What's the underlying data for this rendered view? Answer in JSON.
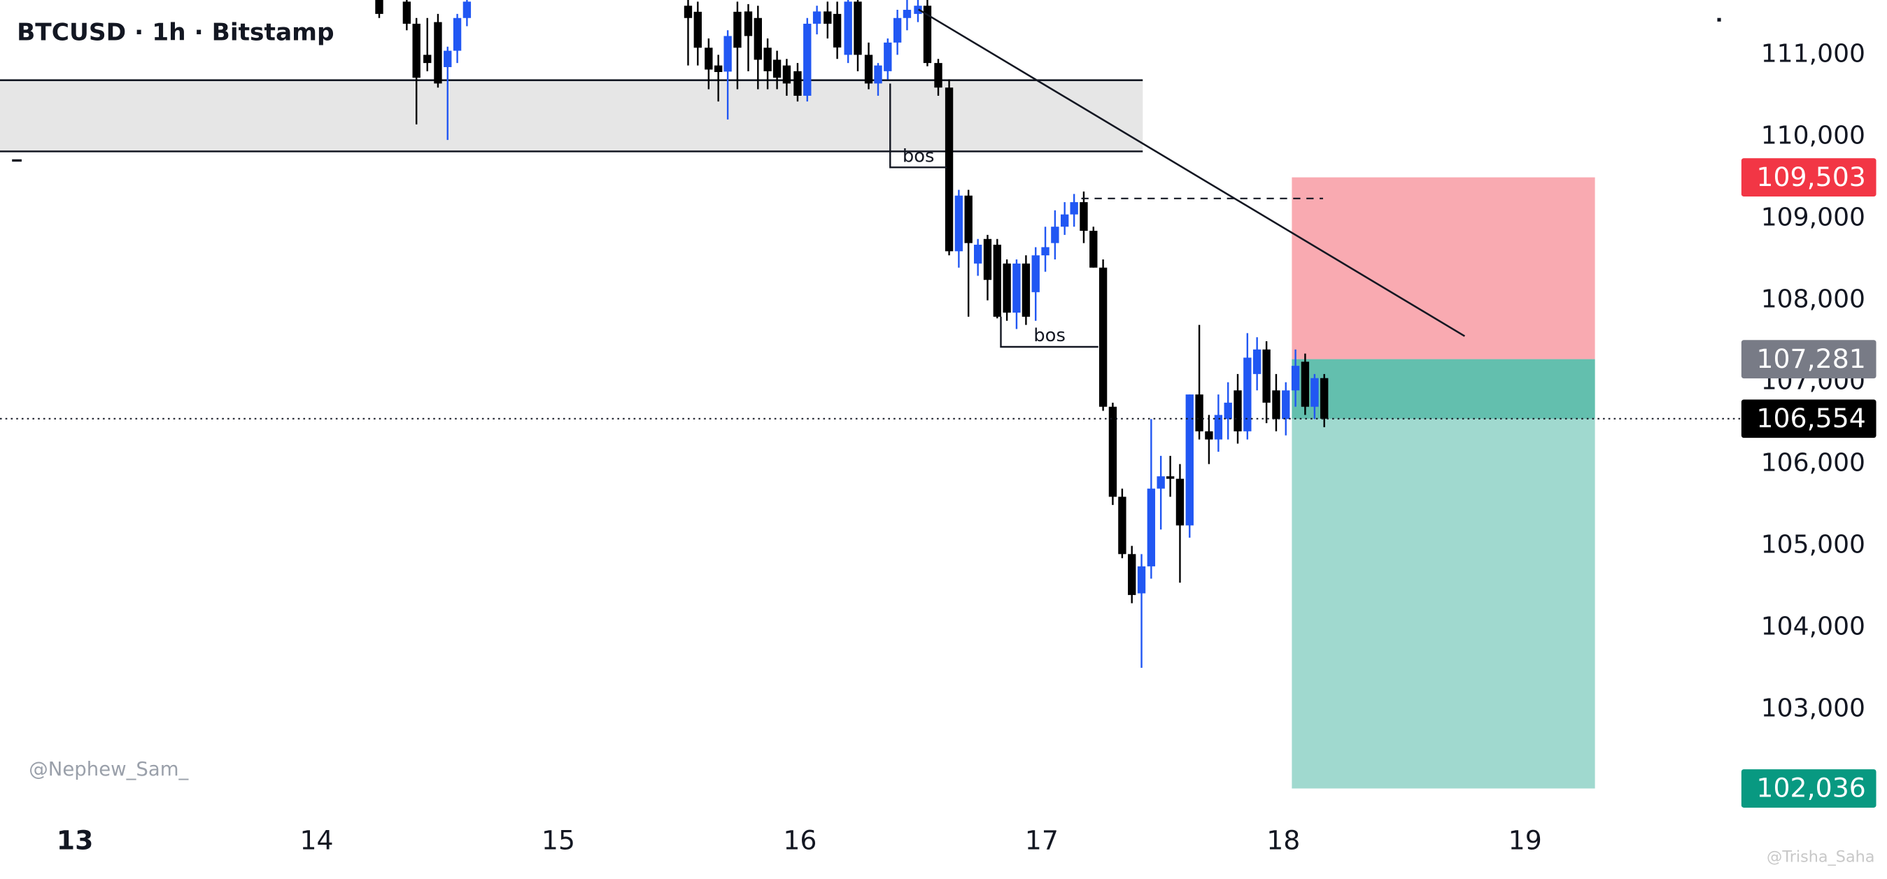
{
  "chart_data": {
    "type": "candlestick",
    "title": "BTCUSD · 1h · Bitstamp",
    "watermark": "@Nephew_Sam_",
    "corner_mark": "@Trisha_Saha",
    "up_color": "#2157f3",
    "down_color": "#000000",
    "xlim": [
      12.69,
      19.86
    ],
    "ylim": [
      101720,
      111670
    ],
    "xticks": [
      13,
      14,
      15,
      16,
      17,
      18,
      19
    ],
    "yticks": [
      {
        "value": 103000,
        "label": "103,000"
      },
      {
        "value": 104000,
        "label": "104,000"
      },
      {
        "value": 105000,
        "label": "105,000"
      },
      {
        "value": 106000,
        "label": "106,000"
      },
      {
        "value": 107000,
        "label": "107,000"
      },
      {
        "value": 108000,
        "label": "108,000"
      },
      {
        "value": 109000,
        "label": "109,000"
      },
      {
        "value": 110000,
        "label": "110,000"
      },
      {
        "value": 111000,
        "label": "111,000"
      }
    ],
    "x": [
      14.259,
      14.373,
      14.413,
      14.458,
      14.502,
      14.542,
      14.582,
      14.622,
      15.537,
      15.577,
      15.622,
      15.662,
      15.701,
      15.741,
      15.786,
      15.826,
      15.866,
      15.905,
      15.945,
      15.99,
      16.03,
      16.07,
      16.114,
      16.154,
      16.199,
      16.239,
      16.284,
      16.323,
      16.363,
      16.403,
      16.443,
      16.488,
      16.527,
      16.572,
      16.617,
      16.657,
      16.697,
      16.736,
      16.776,
      16.816,
      16.856,
      16.896,
      16.935,
      16.975,
      17.015,
      17.055,
      17.095,
      17.134,
      17.174,
      17.214,
      17.254,
      17.294,
      17.333,
      17.373,
      17.413,
      17.453,
      17.493,
      17.532,
      17.572,
      17.612,
      17.652,
      17.692,
      17.731,
      17.771,
      17.811,
      17.851,
      17.891,
      17.93,
      17.97,
      18.01,
      18.05,
      18.09,
      18.129,
      18.169
    ],
    "open": [
      111700,
      111650,
      111380,
      111000,
      111400,
      110850,
      111050,
      111450,
      111600,
      111526,
      111087,
      110870,
      110795,
      111526,
      111530,
      111450,
      111087,
      110940,
      110870,
      110800,
      110500,
      111380,
      111530,
      111500,
      111000,
      111650,
      111000,
      110650,
      110800,
      111150,
      111450,
      111500,
      111600,
      110900,
      110600,
      108600,
      109280,
      108450,
      108750,
      108680,
      108450,
      107850,
      108450,
      108100,
      108550,
      108700,
      108900,
      109050,
      109200,
      108850,
      108400,
      106700,
      105600,
      104900,
      104420,
      104750,
      105700,
      105850,
      105820,
      105250,
      106850,
      106400,
      106300,
      106550,
      106900,
      106400,
      107100,
      107400,
      106900,
      106550,
      106900,
      107250,
      106700,
      107050
    ],
    "high": [
      111750,
      111720,
      111450,
      111450,
      111500,
      111100,
      111500,
      111700,
      111700,
      111650,
      111200,
      111000,
      111300,
      111650,
      111620,
      111600,
      111200,
      111050,
      110950,
      110900,
      111450,
      111600,
      111650,
      111650,
      111700,
      111700,
      111150,
      110900,
      111200,
      111550,
      111700,
      111700,
      111700,
      110950,
      110700,
      109350,
      109350,
      108750,
      108800,
      108750,
      108500,
      108500,
      108550,
      108650,
      108900,
      109100,
      109200,
      109300,
      109330,
      108900,
      108500,
      106750,
      105700,
      105000,
      104900,
      106550,
      106100,
      106100,
      106000,
      106850,
      107700,
      106600,
      106850,
      107000,
      107100,
      107600,
      107550,
      107500,
      107100,
      107000,
      107400,
      107350,
      107100,
      107100
    ],
    "low": [
      111450,
      111300,
      110150,
      110800,
      110600,
      109960,
      110900,
      111350,
      110870,
      110870,
      110580,
      110430,
      110210,
      110580,
      110800,
      110580,
      110580,
      110580,
      110500,
      110430,
      110430,
      111250,
      111200,
      110950,
      110900,
      110800,
      110580,
      110500,
      110700,
      111000,
      111300,
      111400,
      110860,
      110500,
      108550,
      108400,
      107800,
      108300,
      108000,
      107780,
      107750,
      107650,
      107700,
      107750,
      108350,
      108500,
      108800,
      108900,
      108700,
      108400,
      106650,
      105500,
      104850,
      104300,
      103510,
      104600,
      105200,
      105600,
      104550,
      105100,
      106300,
      106000,
      106150,
      106300,
      106250,
      106300,
      106900,
      106500,
      106400,
      106350,
      106700,
      106600,
      106550,
      106450
    ],
    "close": [
      111500,
      111380,
      110720,
      110900,
      110650,
      111050,
      111450,
      111650,
      111450,
      111087,
      110820,
      110790,
      111230,
      111087,
      111230,
      110940,
      110800,
      110720,
      110650,
      110500,
      111380,
      111530,
      111380,
      111090,
      111650,
      111000,
      110650,
      110870,
      111150,
      111450,
      111550,
      111600,
      110900,
      110600,
      108600,
      109280,
      108700,
      108680,
      108250,
      107800,
      107850,
      108450,
      107800,
      108550,
      108650,
      108900,
      109050,
      109200,
      108850,
      108400,
      106700,
      105600,
      104900,
      104400,
      104750,
      105700,
      105850,
      105820,
      105250,
      106850,
      106400,
      106300,
      106600,
      106750,
      106400,
      107300,
      107400,
      106750,
      106550,
      106900,
      107200,
      106700,
      107050,
      106554
    ],
    "zone": {
      "x": [
        12.69,
        17.418
      ],
      "top": 110690,
      "bottom": 109820,
      "color": "#e6e6e6"
    },
    "trendline": {
      "x": [
        16.49,
        18.75
      ],
      "y": [
        111555,
        107563
      ]
    },
    "bos": [
      {
        "label": "bos",
        "x": [
          16.373,
          16.607
        ],
        "from": 110649,
        "price": 109625
      },
      {
        "label": "bos",
        "x": [
          16.831,
          17.234
        ],
        "from": 107800,
        "price": 107432
      }
    ],
    "dashed_level": {
      "x": [
        17.164,
        18.164
      ],
      "price": 109245
    },
    "position": {
      "x": [
        18.035,
        19.289
      ],
      "stop": {
        "value": 109503,
        "label": "109,503",
        "color": "#f23645",
        "fill": "#f9aab1"
      },
      "entry": {
        "value": 107281,
        "label": "107,281",
        "color": "#787b86"
      },
      "target": {
        "value": 102036,
        "label": "102,036",
        "color": "#089981",
        "fill": "#a0d9cf",
        "open_fill": "#63bfae"
      }
    },
    "last_price": {
      "value": 106554,
      "label": "106,554",
      "color": "#000000"
    }
  }
}
